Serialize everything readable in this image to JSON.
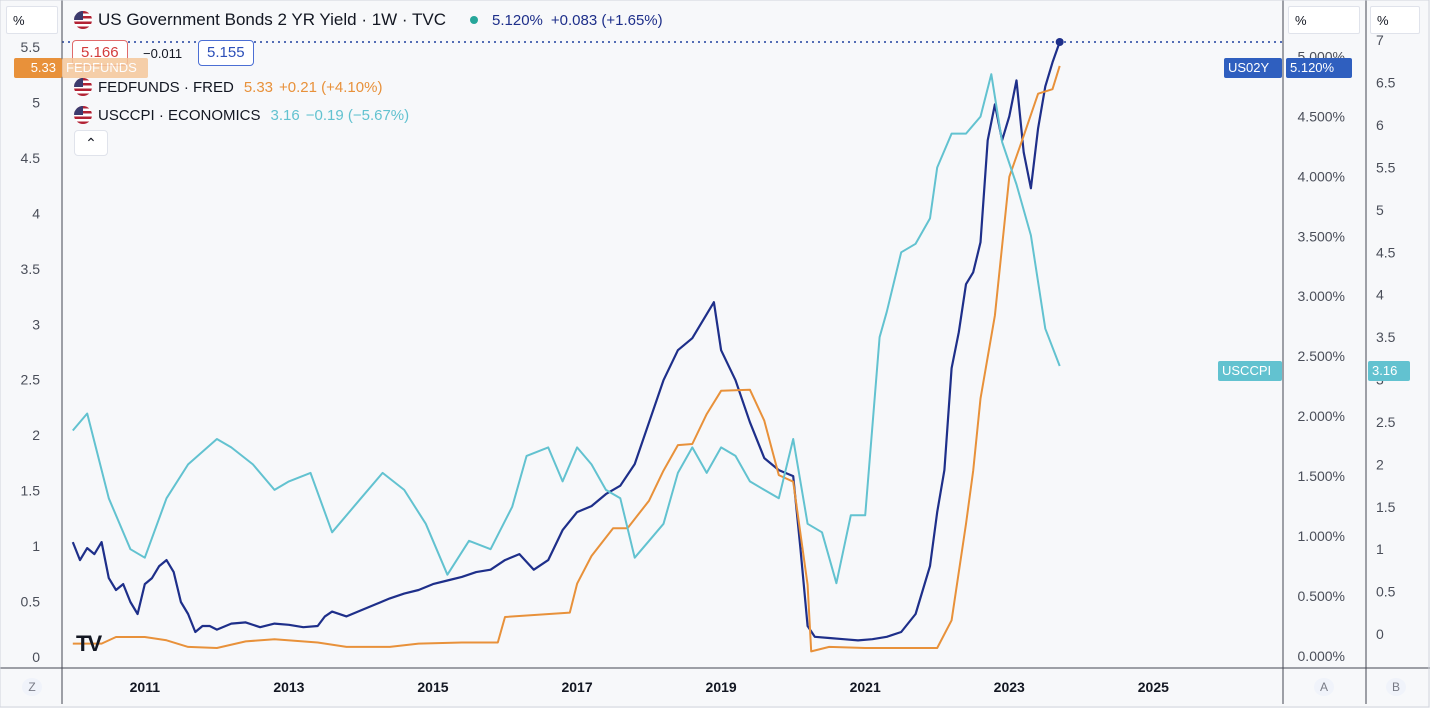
{
  "header": {
    "left_unit": "%",
    "scale_a_unit": "%",
    "scale_b_unit": "%"
  },
  "legend": {
    "main": {
      "title": "US Government Bonds 2 YR Yield · 1W · TVC",
      "last": "5.120%",
      "change": "+0.083 (+1.65%)",
      "color": "#1e2f8a",
      "status_color": "#26a69a"
    },
    "ohlc": {
      "bid": "5.166",
      "spread": "−0.011",
      "ask": "5.155"
    },
    "series": [
      {
        "name": "FEDFUNDS · FRED",
        "value": "5.33",
        "change": "+0.21 (+4.10%)",
        "color": "#e8913a"
      },
      {
        "name": "USCCPI · ECONOMICS",
        "value": "3.16",
        "change": "−0.19 (−5.67%)",
        "color": "#62c2d0"
      }
    ],
    "collapse_icon": "chevron-up-icon"
  },
  "price_tags": {
    "fedfunds_left_value": "5.33",
    "fedfunds_left_label": "FEDFUNDS",
    "us02y_label": "US02Y",
    "us02y_value": "5.120%",
    "usccpi_label": "USCCPI",
    "usccpi_value": "3.16"
  },
  "axis_buttons": {
    "left": "Z",
    "a": "A",
    "b": "B"
  },
  "logo": "TV",
  "chart_data": {
    "type": "line",
    "x_ticks": [
      "2011",
      "2013",
      "2015",
      "2017",
      "2019",
      "2021",
      "2023",
      "2025"
    ],
    "x_range": [
      2009.85,
      2026.8
    ],
    "axes": {
      "left": {
        "ticks": [
          "0",
          "0.5",
          "1",
          "1.5",
          "2",
          "2.5",
          "3",
          "3.5",
          "4",
          "4.5",
          "5",
          "5.5"
        ],
        "range": [
          -0.1,
          5.6
        ]
      },
      "a": {
        "ticks": [
          "0.000%",
          "0.500%",
          "1.000%",
          "1.500%",
          "2.000%",
          "2.500%",
          "3.000%",
          "3.500%",
          "4.000%",
          "4.500%",
          "5.000%"
        ],
        "range": [
          -0.1,
          5.17
        ]
      },
      "b": {
        "ticks": [
          "0",
          "0.5",
          "1",
          "1.5",
          "2",
          "2.5",
          "3",
          "3.5",
          "4",
          "4.5",
          "5",
          "5.5",
          "6",
          "6.5",
          "7"
        ],
        "range": [
          -0.4,
          7.05
        ]
      }
    },
    "series": [
      {
        "name": "US02Y",
        "axis": "a",
        "color": "#1e2f8a",
        "x": [
          2010.0,
          2010.1,
          2010.2,
          2010.3,
          2010.4,
          2010.5,
          2010.6,
          2010.7,
          2010.8,
          2010.9,
          2011.0,
          2011.1,
          2011.2,
          2011.3,
          2011.4,
          2011.5,
          2011.6,
          2011.7,
          2011.8,
          2011.9,
          2012.0,
          2012.2,
          2012.4,
          2012.6,
          2012.8,
          2013.0,
          2013.2,
          2013.4,
          2013.5,
          2013.6,
          2013.8,
          2014.0,
          2014.2,
          2014.4,
          2014.6,
          2014.8,
          2015.0,
          2015.2,
          2015.4,
          2015.6,
          2015.8,
          2016.0,
          2016.2,
          2016.4,
          2016.6,
          2016.8,
          2017.0,
          2017.2,
          2017.4,
          2017.6,
          2017.8,
          2018.0,
          2018.2,
          2018.4,
          2018.6,
          2018.8,
          2018.9,
          2019.0,
          2019.2,
          2019.4,
          2019.6,
          2019.8,
          2020.0,
          2020.1,
          2020.2,
          2020.3,
          2020.5,
          2020.7,
          2020.9,
          2021.1,
          2021.3,
          2021.5,
          2021.7,
          2021.9,
          2022.0,
          2022.1,
          2022.2,
          2022.3,
          2022.4,
          2022.5,
          2022.6,
          2022.7,
          2022.8,
          2022.9,
          2023.0,
          2023.1,
          2023.2,
          2023.3,
          2023.4,
          2023.5,
          2023.6,
          2023.7
        ],
        "y": [
          0.95,
          0.8,
          0.9,
          0.85,
          0.95,
          0.65,
          0.55,
          0.6,
          0.45,
          0.35,
          0.6,
          0.65,
          0.75,
          0.8,
          0.7,
          0.45,
          0.35,
          0.2,
          0.25,
          0.25,
          0.22,
          0.27,
          0.28,
          0.24,
          0.27,
          0.26,
          0.24,
          0.25,
          0.33,
          0.37,
          0.33,
          0.38,
          0.43,
          0.48,
          0.52,
          0.55,
          0.6,
          0.63,
          0.66,
          0.7,
          0.72,
          0.8,
          0.85,
          0.72,
          0.8,
          1.05,
          1.2,
          1.25,
          1.35,
          1.42,
          1.6,
          1.95,
          2.3,
          2.55,
          2.65,
          2.85,
          2.95,
          2.55,
          2.3,
          1.95,
          1.65,
          1.55,
          1.5,
          0.9,
          0.25,
          0.16,
          0.15,
          0.14,
          0.13,
          0.14,
          0.16,
          0.2,
          0.35,
          0.75,
          1.2,
          1.55,
          2.4,
          2.7,
          3.1,
          3.2,
          3.45,
          4.3,
          4.6,
          4.3,
          4.5,
          4.8,
          4.2,
          3.9,
          4.4,
          4.75,
          4.95,
          5.12
        ]
      },
      {
        "name": "FEDFUNDS",
        "axis": "left",
        "color": "#e8913a",
        "x": [
          2010.0,
          2010.4,
          2010.6,
          2011.0,
          2011.3,
          2011.6,
          2012.0,
          2012.4,
          2012.8,
          2013.4,
          2013.8,
          2014.4,
          2014.8,
          2015.4,
          2015.9,
          2016.0,
          2016.9,
          2017.0,
          2017.2,
          2017.5,
          2017.7,
          2018.0,
          2018.2,
          2018.4,
          2018.6,
          2018.8,
          2019.0,
          2019.4,
          2019.6,
          2019.8,
          2020.0,
          2020.2,
          2020.25,
          2020.5,
          2021.0,
          2021.5,
          2022.0,
          2022.2,
          2022.4,
          2022.5,
          2022.6,
          2022.8,
          2023.0,
          2023.2,
          2023.4,
          2023.6,
          2023.7
        ],
        "y": [
          0.12,
          0.12,
          0.18,
          0.18,
          0.15,
          0.09,
          0.08,
          0.14,
          0.16,
          0.13,
          0.09,
          0.09,
          0.12,
          0.13,
          0.13,
          0.36,
          0.4,
          0.66,
          0.91,
          1.16,
          1.16,
          1.41,
          1.68,
          1.91,
          1.92,
          2.19,
          2.4,
          2.41,
          2.13,
          1.64,
          1.58,
          0.65,
          0.05,
          0.09,
          0.08,
          0.08,
          0.08,
          0.33,
          1.2,
          1.68,
          2.33,
          3.08,
          4.33,
          4.7,
          5.08,
          5.12,
          5.33
        ]
      },
      {
        "name": "USCCPI",
        "axis": "b",
        "color": "#62c2d0",
        "x": [
          2010.0,
          2010.2,
          2010.5,
          2010.8,
          2011.0,
          2011.3,
          2011.6,
          2012.0,
          2012.2,
          2012.5,
          2012.8,
          2013.0,
          2013.3,
          2013.6,
          2014.0,
          2014.3,
          2014.6,
          2014.9,
          2015.2,
          2015.5,
          2015.8,
          2016.1,
          2016.3,
          2016.6,
          2016.8,
          2017.0,
          2017.2,
          2017.4,
          2017.6,
          2017.8,
          2018.0,
          2018.2,
          2018.4,
          2018.6,
          2018.8,
          2019.0,
          2019.2,
          2019.4,
          2019.6,
          2019.8,
          2020.0,
          2020.2,
          2020.4,
          2020.6,
          2020.8,
          2021.0,
          2021.2,
          2021.3,
          2021.5,
          2021.7,
          2021.9,
          2022.0,
          2022.2,
          2022.4,
          2022.6,
          2022.75,
          2022.9,
          2023.1,
          2023.3,
          2023.5,
          2023.7
        ],
        "y": [
          2.4,
          2.6,
          1.6,
          1.0,
          0.9,
          1.6,
          2.0,
          2.3,
          2.2,
          2.0,
          1.7,
          1.8,
          1.9,
          1.2,
          1.6,
          1.9,
          1.7,
          1.3,
          0.7,
          1.1,
          1.0,
          1.5,
          2.1,
          2.2,
          1.8,
          2.2,
          2.0,
          1.7,
          1.6,
          0.9,
          1.1,
          1.3,
          1.9,
          2.2,
          1.9,
          2.2,
          2.1,
          1.8,
          1.7,
          1.6,
          2.3,
          1.3,
          1.2,
          0.6,
          1.4,
          1.4,
          3.5,
          3.8,
          4.5,
          4.6,
          4.9,
          5.5,
          5.9,
          5.9,
          6.1,
          6.6,
          5.8,
          5.3,
          4.7,
          3.6,
          3.16
        ]
      }
    ]
  }
}
